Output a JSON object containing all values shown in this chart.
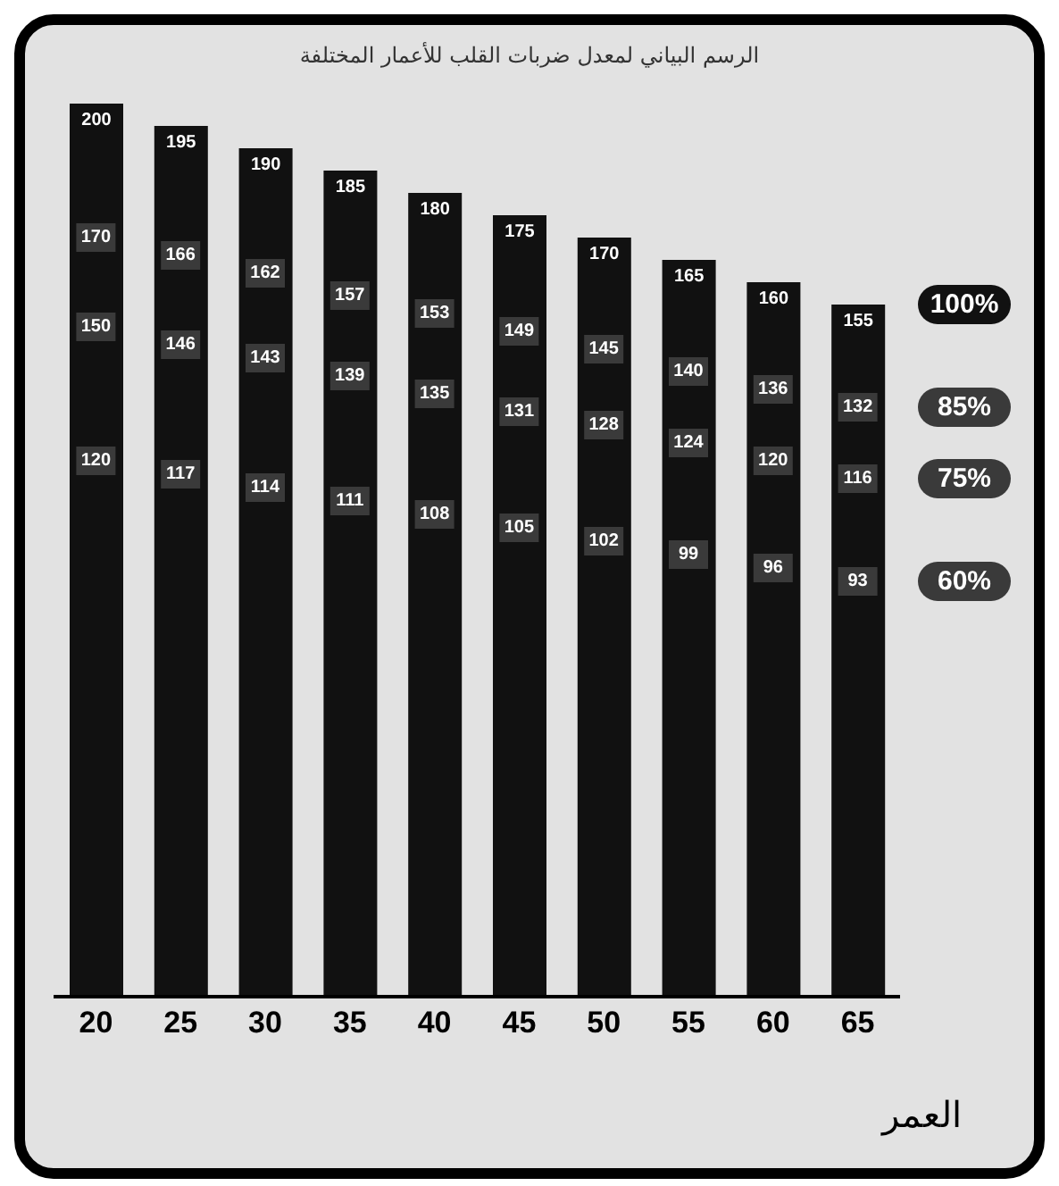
{
  "chart_data": {
    "type": "bar",
    "title": "الرسم البياني لمعدل ضربات القلب للأعمار المختلفة",
    "xlabel": "العمر",
    "categories": [
      "20",
      "25",
      "30",
      "35",
      "40",
      "45",
      "50",
      "55",
      "60",
      "65"
    ],
    "series": [
      {
        "name": "100%",
        "color": "#111111",
        "values": [
          200,
          195,
          190,
          185,
          180,
          175,
          170,
          165,
          160,
          155
        ]
      },
      {
        "name": "85%",
        "type": "scatter",
        "color": "#3a3a3a",
        "values": [
          170,
          166,
          162,
          157,
          153,
          149,
          145,
          140,
          136,
          132
        ]
      },
      {
        "name": "75%",
        "type": "scatter",
        "color": "#3a3a3a",
        "values": [
          150,
          146,
          143,
          139,
          135,
          131,
          128,
          124,
          120,
          116
        ]
      },
      {
        "name": "60%",
        "type": "scatter",
        "color": "#3a3a3a",
        "values": [
          120,
          117,
          114,
          111,
          108,
          105,
          102,
          99,
          96,
          93
        ]
      }
    ],
    "marker": "square",
    "data_labels": true,
    "tick_labels": "x"
  }
}
